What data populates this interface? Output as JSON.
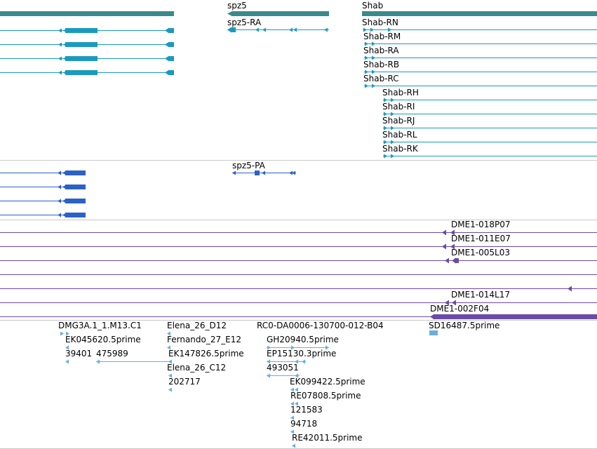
{
  "colors": {
    "gene": "#3a8a8a",
    "transcript": "#1a9ac0",
    "protein": "#2a62c8",
    "clone": "#6a4aa8",
    "est": "#6aaedc",
    "divider": "#c8c8c8"
  },
  "icons": {
    "strand_minus": "left-arrow-icon",
    "strand_plus": "right-arrow-icon"
  },
  "tracks": {
    "genes": {
      "labels": [
        "spz5",
        "Shab"
      ]
    },
    "transcripts": {
      "labels": [
        "spz5-RA",
        "Shab-RN",
        "Shab-RM",
        "Shab-RA",
        "Shab-RB",
        "Shab-RC",
        "Shab-RH",
        "Shab-RI",
        "Shab-RJ",
        "Shab-RL",
        "Shab-RK"
      ]
    },
    "proteins": {
      "labels": [
        "spz5-PA"
      ]
    },
    "clones": {
      "labels": [
        "DME1-018P07",
        "DME1-011E07",
        "DME1-005L03",
        "DME1-014L17",
        "DME1-002F04"
      ]
    },
    "ests": {
      "labels": [
        "DMG3A.1_1.M13.C1",
        "EK045620.5prime",
        "39401",
        "475989",
        "Elena_26_D12",
        "Fernando_27_E12",
        "EK147826.5prime",
        "Elena_26_C12",
        "202717",
        "RC0-DA0006-130700-012-B04",
        "GH20940.5prime",
        "EP15130.3prime",
        "493051",
        "EK099422.5prime",
        "RE07808.5prime",
        "121583",
        "94718",
        "RE42011.5prime",
        "SD16487.5prime"
      ]
    }
  }
}
